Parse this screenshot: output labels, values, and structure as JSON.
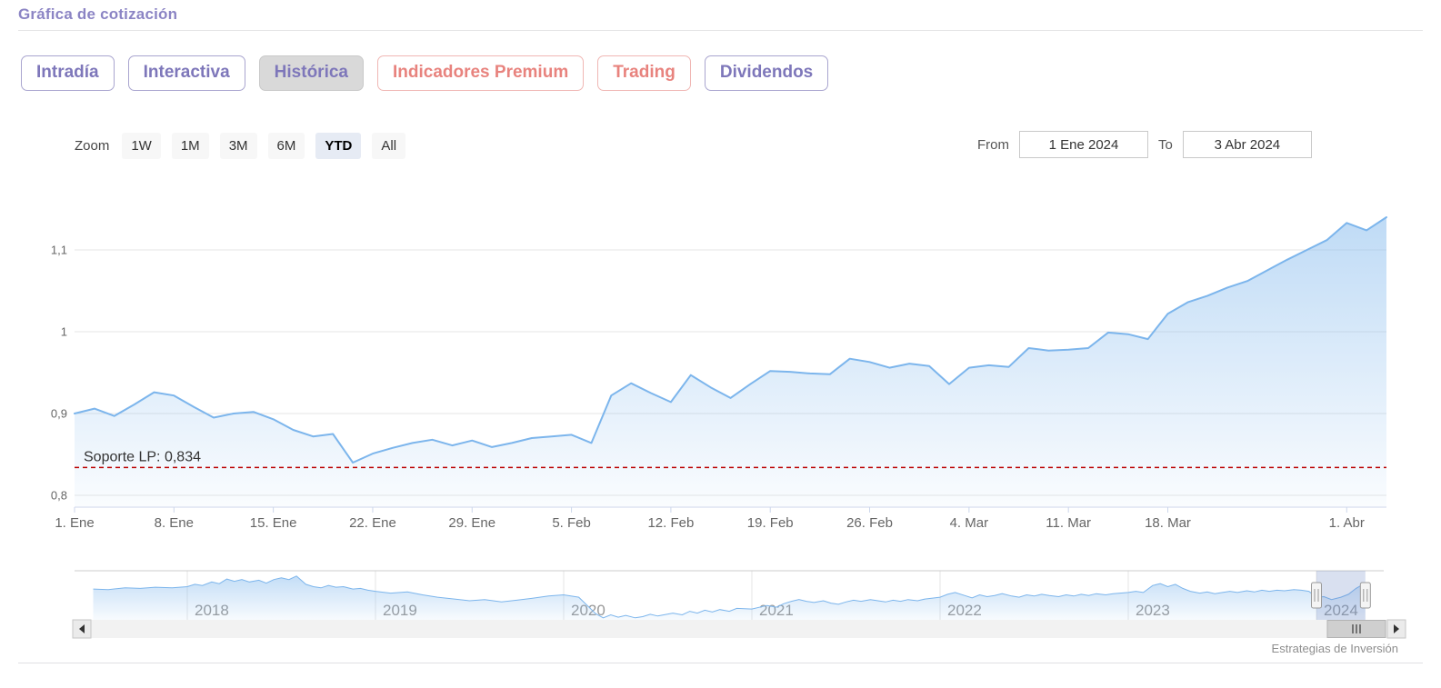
{
  "page": {
    "title": "Gráfica de cotización"
  },
  "colors": {
    "title_purple": "#8b84c4",
    "tab_purple": "#7e77ba",
    "tab_red": "#e8837e",
    "series_blue": "#7cb5ec",
    "support_red": "#bb0000"
  },
  "tabs": [
    {
      "label": "Intradía",
      "style": "purple",
      "active": false
    },
    {
      "label": "Interactiva",
      "style": "purple",
      "active": false
    },
    {
      "label": "Histórica",
      "style": "purple",
      "active": true
    },
    {
      "label": "Indicadores Premium",
      "style": "red",
      "active": false
    },
    {
      "label": "Trading",
      "style": "red",
      "active": false
    },
    {
      "label": "Dividendos",
      "style": "purple",
      "active": false
    }
  ],
  "range_selector": {
    "zoom_label": "Zoom",
    "buttons": [
      {
        "label": "1W",
        "selected": false
      },
      {
        "label": "1M",
        "selected": false
      },
      {
        "label": "3M",
        "selected": false
      },
      {
        "label": "6M",
        "selected": false
      },
      {
        "label": "YTD",
        "selected": true
      },
      {
        "label": "All",
        "selected": false
      }
    ],
    "from_label": "From",
    "from_value": "1 Ene 2024",
    "to_label": "To",
    "to_value": "3 Abr 2024"
  },
  "chart_data": {
    "type": "area",
    "title": "",
    "xlabel": "",
    "ylabel": "",
    "ylim": [
      0.785,
      1.165
    ],
    "grid": true,
    "line_color": "#7cb5ec",
    "x": [
      "2024-01-01",
      "2024-01-02",
      "2024-01-03",
      "2024-01-04",
      "2024-01-05",
      "2024-01-08",
      "2024-01-09",
      "2024-01-10",
      "2024-01-11",
      "2024-01-12",
      "2024-01-15",
      "2024-01-16",
      "2024-01-17",
      "2024-01-18",
      "2024-01-19",
      "2024-01-22",
      "2024-01-23",
      "2024-01-24",
      "2024-01-25",
      "2024-01-26",
      "2024-01-29",
      "2024-01-30",
      "2024-01-31",
      "2024-02-01",
      "2024-02-02",
      "2024-02-05",
      "2024-02-06",
      "2024-02-07",
      "2024-02-08",
      "2024-02-09",
      "2024-02-12",
      "2024-02-13",
      "2024-02-14",
      "2024-02-15",
      "2024-02-16",
      "2024-02-19",
      "2024-02-20",
      "2024-02-21",
      "2024-02-22",
      "2024-02-23",
      "2024-02-26",
      "2024-02-27",
      "2024-02-28",
      "2024-02-29",
      "2024-03-01",
      "2024-03-04",
      "2024-03-05",
      "2024-03-06",
      "2024-03-07",
      "2024-03-08",
      "2024-03-11",
      "2024-03-12",
      "2024-03-13",
      "2024-03-14",
      "2024-03-15",
      "2024-03-18",
      "2024-03-19",
      "2024-03-20",
      "2024-03-21",
      "2024-03-22",
      "2024-03-25",
      "2024-03-26",
      "2024-03-27",
      "2024-03-28",
      "2024-04-01",
      "2024-04-02",
      "2024-04-03"
    ],
    "values": [
      0.9,
      0.906,
      0.897,
      0.911,
      0.926,
      0.922,
      0.908,
      0.895,
      0.9,
      0.902,
      0.893,
      0.88,
      0.872,
      0.875,
      0.84,
      0.851,
      0.858,
      0.864,
      0.868,
      0.861,
      0.867,
      0.859,
      0.864,
      0.87,
      0.872,
      0.874,
      0.864,
      0.922,
      0.937,
      0.925,
      0.914,
      0.947,
      0.932,
      0.919,
      0.936,
      0.952,
      0.951,
      0.949,
      0.948,
      0.967,
      0.963,
      0.956,
      0.961,
      0.958,
      0.936,
      0.956,
      0.959,
      0.957,
      0.98,
      0.977,
      0.978,
      0.98,
      0.999,
      0.997,
      0.991,
      1.022,
      1.036,
      1.044,
      1.054,
      1.062,
      1.075,
      1.088,
      1.1,
      1.112,
      1.133,
      1.124,
      1.14
    ],
    "yticks": [
      {
        "value": 0.8,
        "label": "0,8"
      },
      {
        "value": 0.9,
        "label": "0,9"
      },
      {
        "value": 1.0,
        "label": "1"
      },
      {
        "value": 1.1,
        "label": "1,1"
      }
    ],
    "xticks": [
      {
        "index": 0,
        "label": "1. Ene"
      },
      {
        "index": 5,
        "label": "8. Ene"
      },
      {
        "index": 10,
        "label": "15. Ene"
      },
      {
        "index": 15,
        "label": "22. Ene"
      },
      {
        "index": 20,
        "label": "29. Ene"
      },
      {
        "index": 25,
        "label": "5. Feb"
      },
      {
        "index": 30,
        "label": "12. Feb"
      },
      {
        "index": 35,
        "label": "19. Feb"
      },
      {
        "index": 40,
        "label": "26. Feb"
      },
      {
        "index": 45,
        "label": "4. Mar"
      },
      {
        "index": 50,
        "label": "11. Mar"
      },
      {
        "index": 55,
        "label": "18. Mar"
      },
      {
        "index": 64,
        "label": "1. Abr"
      }
    ],
    "support": {
      "label": "Soporte LP: 0,834",
      "value": 0.834,
      "color": "#bb0000"
    },
    "navigator": {
      "year_labels": [
        {
          "year": 2018,
          "label": "2018"
        },
        {
          "year": 2019,
          "label": "2019"
        },
        {
          "year": 2020,
          "label": "2020"
        },
        {
          "year": 2021,
          "label": "2021"
        },
        {
          "year": 2022,
          "label": "2022"
        },
        {
          "year": 2023,
          "label": "2023"
        },
        {
          "year": 2024,
          "label": "2024"
        }
      ],
      "selected_range": [
        2024.0,
        2024.26
      ],
      "series": [
        [
          2017.5,
          1.04
        ],
        [
          2017.58,
          1.03
        ],
        [
          2017.67,
          1.06
        ],
        [
          2017.75,
          1.05
        ],
        [
          2017.83,
          1.07
        ],
        [
          2017.92,
          1.06
        ],
        [
          2018.0,
          1.08
        ],
        [
          2018.04,
          1.12
        ],
        [
          2018.08,
          1.1
        ],
        [
          2018.13,
          1.16
        ],
        [
          2018.17,
          1.13
        ],
        [
          2018.21,
          1.21
        ],
        [
          2018.25,
          1.17
        ],
        [
          2018.29,
          1.2
        ],
        [
          2018.33,
          1.16
        ],
        [
          2018.38,
          1.19
        ],
        [
          2018.42,
          1.14
        ],
        [
          2018.46,
          1.2
        ],
        [
          2018.5,
          1.23
        ],
        [
          2018.54,
          1.2
        ],
        [
          2018.58,
          1.26
        ],
        [
          2018.63,
          1.12
        ],
        [
          2018.67,
          1.08
        ],
        [
          2018.71,
          1.06
        ],
        [
          2018.75,
          1.1
        ],
        [
          2018.79,
          1.07
        ],
        [
          2018.83,
          1.08
        ],
        [
          2018.88,
          1.04
        ],
        [
          2018.92,
          1.05
        ],
        [
          2018.96,
          1.02
        ],
        [
          2019.0,
          1.0
        ],
        [
          2019.08,
          0.97
        ],
        [
          2019.17,
          0.99
        ],
        [
          2019.25,
          0.94
        ],
        [
          2019.33,
          0.9
        ],
        [
          2019.42,
          0.87
        ],
        [
          2019.5,
          0.84
        ],
        [
          2019.58,
          0.86
        ],
        [
          2019.67,
          0.82
        ],
        [
          2019.75,
          0.85
        ],
        [
          2019.83,
          0.88
        ],
        [
          2019.92,
          0.92
        ],
        [
          2020.0,
          0.94
        ],
        [
          2020.08,
          0.9
        ],
        [
          2020.17,
          0.62
        ],
        [
          2020.21,
          0.55
        ],
        [
          2020.25,
          0.6
        ],
        [
          2020.29,
          0.56
        ],
        [
          2020.33,
          0.59
        ],
        [
          2020.38,
          0.55
        ],
        [
          2020.42,
          0.57
        ],
        [
          2020.46,
          0.61
        ],
        [
          2020.5,
          0.58
        ],
        [
          2020.58,
          0.63
        ],
        [
          2020.63,
          0.6
        ],
        [
          2020.67,
          0.66
        ],
        [
          2020.71,
          0.63
        ],
        [
          2020.75,
          0.68
        ],
        [
          2020.79,
          0.65
        ],
        [
          2020.83,
          0.69
        ],
        [
          2020.88,
          0.66
        ],
        [
          2020.92,
          0.71
        ],
        [
          2021.0,
          0.7
        ],
        [
          2021.08,
          0.76
        ],
        [
          2021.13,
          0.73
        ],
        [
          2021.17,
          0.79
        ],
        [
          2021.21,
          0.83
        ],
        [
          2021.25,
          0.86
        ],
        [
          2021.29,
          0.83
        ],
        [
          2021.33,
          0.81
        ],
        [
          2021.38,
          0.84
        ],
        [
          2021.42,
          0.8
        ],
        [
          2021.46,
          0.78
        ],
        [
          2021.5,
          0.82
        ],
        [
          2021.54,
          0.85
        ],
        [
          2021.58,
          0.83
        ],
        [
          2021.63,
          0.86
        ],
        [
          2021.67,
          0.84
        ],
        [
          2021.71,
          0.82
        ],
        [
          2021.75,
          0.85
        ],
        [
          2021.79,
          0.83
        ],
        [
          2021.83,
          0.86
        ],
        [
          2021.88,
          0.84
        ],
        [
          2021.92,
          0.87
        ],
        [
          2022.0,
          0.9
        ],
        [
          2022.04,
          0.95
        ],
        [
          2022.08,
          0.98
        ],
        [
          2022.13,
          0.93
        ],
        [
          2022.17,
          0.89
        ],
        [
          2022.21,
          0.94
        ],
        [
          2022.25,
          0.91
        ],
        [
          2022.29,
          0.93
        ],
        [
          2022.33,
          0.96
        ],
        [
          2022.38,
          0.92
        ],
        [
          2022.42,
          0.9
        ],
        [
          2022.46,
          0.94
        ],
        [
          2022.5,
          0.92
        ],
        [
          2022.54,
          0.95
        ],
        [
          2022.58,
          0.93
        ],
        [
          2022.63,
          0.91
        ],
        [
          2022.67,
          0.94
        ],
        [
          2022.71,
          0.92
        ],
        [
          2022.75,
          0.95
        ],
        [
          2022.79,
          0.93
        ],
        [
          2022.83,
          0.96
        ],
        [
          2022.88,
          0.94
        ],
        [
          2022.92,
          0.96
        ],
        [
          2023.0,
          0.98
        ],
        [
          2023.04,
          1.0
        ],
        [
          2023.08,
          0.98
        ],
        [
          2023.13,
          1.1
        ],
        [
          2023.17,
          1.13
        ],
        [
          2023.21,
          1.08
        ],
        [
          2023.25,
          1.12
        ],
        [
          2023.29,
          1.05
        ],
        [
          2023.33,
          1.0
        ],
        [
          2023.38,
          0.97
        ],
        [
          2023.42,
          0.99
        ],
        [
          2023.46,
          0.96
        ],
        [
          2023.5,
          0.98
        ],
        [
          2023.54,
          1.0
        ],
        [
          2023.58,
          0.98
        ],
        [
          2023.63,
          1.01
        ],
        [
          2023.67,
          0.99
        ],
        [
          2023.71,
          1.02
        ],
        [
          2023.75,
          1.0
        ],
        [
          2023.79,
          1.02
        ],
        [
          2023.83,
          1.01
        ],
        [
          2023.88,
          1.03
        ],
        [
          2023.92,
          1.02
        ],
        [
          2023.96,
          1.0
        ],
        [
          2024.0,
          0.9
        ],
        [
          2024.04,
          0.91
        ],
        [
          2024.08,
          0.86
        ],
        [
          2024.13,
          0.9
        ],
        [
          2024.17,
          0.95
        ],
        [
          2024.21,
          1.05
        ],
        [
          2024.26,
          1.14
        ]
      ]
    }
  },
  "credit": "Estrategias de Inversión"
}
